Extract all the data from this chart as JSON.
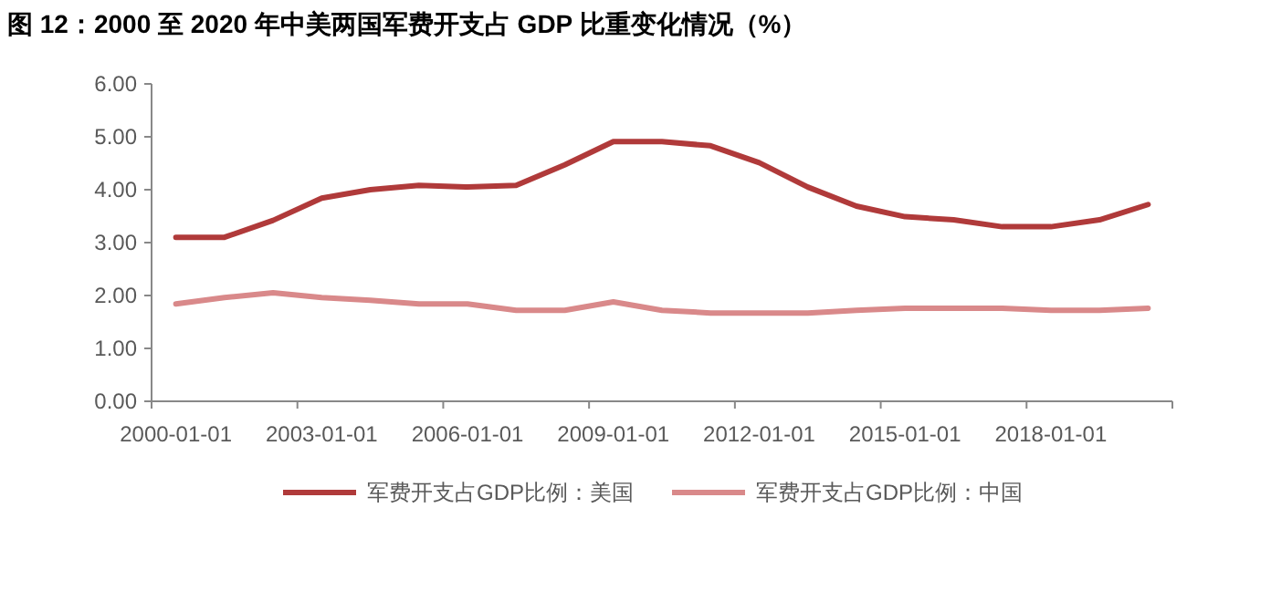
{
  "chart_data": {
    "type": "line",
    "title": "图 12：2000 至 2020 年中美两国军费开支占 GDP 比重变化情况（%）",
    "categories": [
      "2000-01-01",
      null,
      null,
      "2003-01-01",
      null,
      null,
      "2006-01-01",
      null,
      null,
      "2009-01-01",
      null,
      null,
      "2012-01-01",
      null,
      null,
      "2015-01-01",
      null,
      null,
      "2018-01-01",
      null,
      null
    ],
    "series": [
      {
        "name": "军费开支占GDP比例：美国",
        "color": "#b03a3a",
        "values": [
          3.1,
          3.1,
          3.42,
          3.84,
          4.0,
          4.08,
          4.05,
          4.08,
          4.47,
          4.91,
          4.91,
          4.83,
          4.51,
          4.05,
          3.69,
          3.49,
          3.43,
          3.3,
          3.3,
          3.43,
          3.72
        ]
      },
      {
        "name": "军费开支占GDP比例：中国",
        "color": "#d9898a",
        "values": [
          1.84,
          1.96,
          2.05,
          1.96,
          1.91,
          1.84,
          1.84,
          1.72,
          1.72,
          1.88,
          1.72,
          1.67,
          1.67,
          1.67,
          1.72,
          1.76,
          1.76,
          1.76,
          1.72,
          1.72,
          1.76
        ]
      }
    ],
    "ylim": [
      0,
      6
    ],
    "yticks": [
      {
        "value": 0,
        "label": "0.00"
      },
      {
        "value": 1,
        "label": "1.00"
      },
      {
        "value": 2,
        "label": "2.00"
      },
      {
        "value": 3,
        "label": "3.00"
      },
      {
        "value": 4,
        "label": "4.00"
      },
      {
        "value": 5,
        "label": "5.00"
      },
      {
        "value": 6,
        "label": "6.00"
      }
    ],
    "grid": false,
    "legend": "bottom",
    "marker": "none",
    "line_style": "solid"
  }
}
